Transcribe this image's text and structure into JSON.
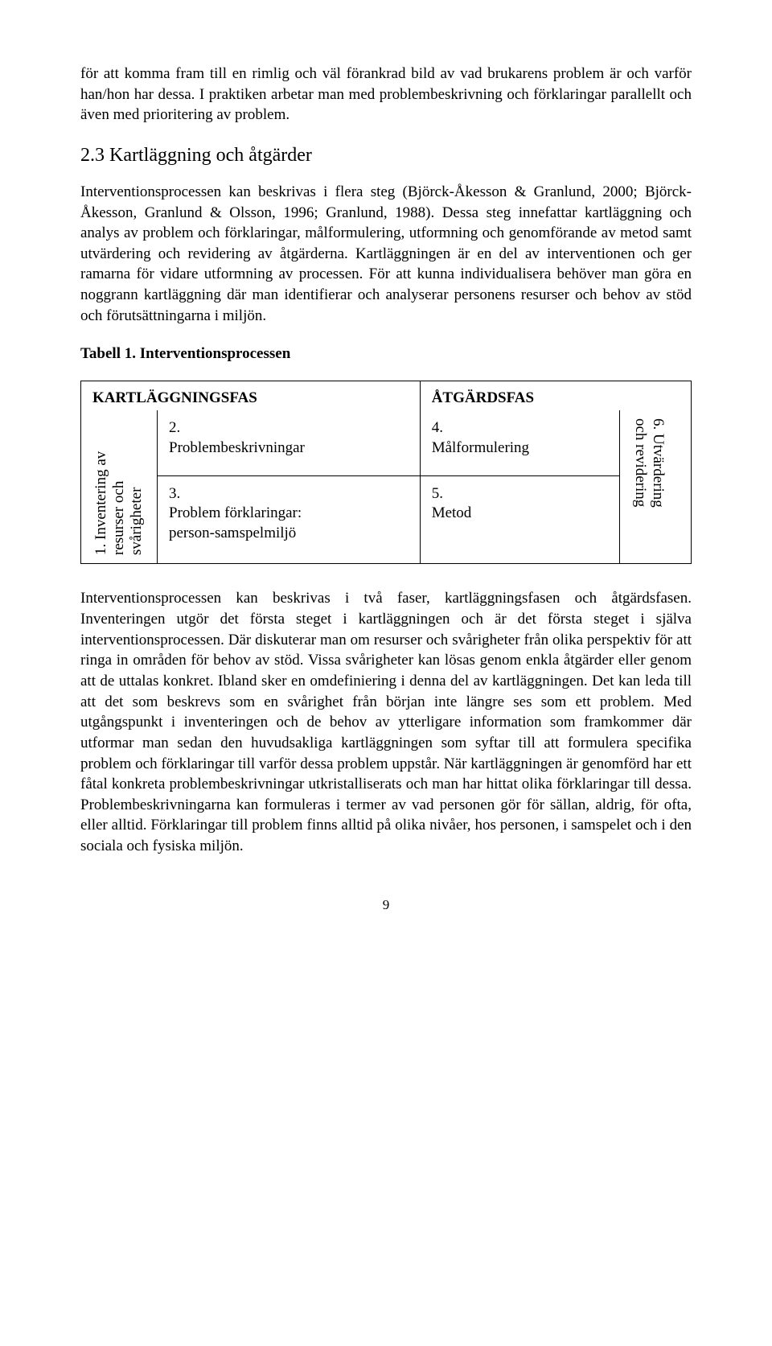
{
  "paragraph_1": "för att komma fram till en rimlig och väl förankrad bild av vad brukarens problem är och varför han/hon har dessa. I praktiken arbetar man med problembeskrivning och förklaringar parallellt och även med prioritering av problem.",
  "heading_2_3": "2.3 Kartläggning och åtgärder",
  "paragraph_2": "Interventionsprocessen kan beskrivas i flera steg (Björck-Åkesson & Granlund, 2000; Björck-Åkesson, Granlund & Olsson, 1996; Granlund, 1988). Dessa steg innefattar kartläggning och analys av problem och förklaringar, målformulering, utformning och genomförande av metod samt utvärdering och revidering av åtgärderna. Kartläggningen är en del av interventionen och ger ramarna för vidare utformning av processen. För att kunna individualisera behöver man göra en noggrann kartläggning där man identifierar och analyserar personens resurser och behov av stöd och förutsättningarna i miljön.",
  "table_title": "Tabell 1. Interventionsprocessen",
  "table": {
    "phase1_header": "KARTLÄGGNINGSFAS",
    "phase2_header": "ÅTGÄRDSFAS",
    "col1_vert": "1. Inventering av\nresurser och\nsvårigheter",
    "cell_2": "2.\nProblembeskrivningar",
    "cell_3": "3.\nProblem förklaringar:\nperson-samspelmiljö",
    "cell_4": "4.\nMålformulering",
    "cell_5": "5.\nMetod",
    "col6_vert": "6. Utvärdering\noch revidering"
  },
  "paragraph_3": "Interventionsprocessen kan beskrivas i två faser, kartläggningsfasen och åtgärdsfasen. Inventeringen utgör det första steget i kartläggningen och är det första steget i själva interventionsprocessen. Där diskuterar man om resurser och svårigheter från olika perspektiv för att ringa in områden för behov av stöd. Vissa svårigheter kan lösas genom enkla åtgärder eller genom att de uttalas konkret. Ibland sker en omdefiniering i denna del av kartläggningen. Det kan leda till att det som beskrevs som en svårighet från början inte längre ses som ett problem. Med utgångspunkt i inventeringen och de behov av ytterligare information som framkommer där utformar man sedan den huvudsakliga kartläggningen som syftar till att formulera specifika problem och förklaringar till varför dessa problem uppstår. När kartläggningen är genomförd har ett fåtal konkreta problembeskrivningar utkristalliserats och man har hittat olika förklaringar till dessa. Problembeskrivningarna kan formuleras i termer av vad personen gör för sällan, aldrig, för ofta, eller alltid. Förklaringar till problem finns alltid på olika nivåer, hos personen, i samspelet och i den sociala och fysiska miljön.",
  "page_number": "9"
}
